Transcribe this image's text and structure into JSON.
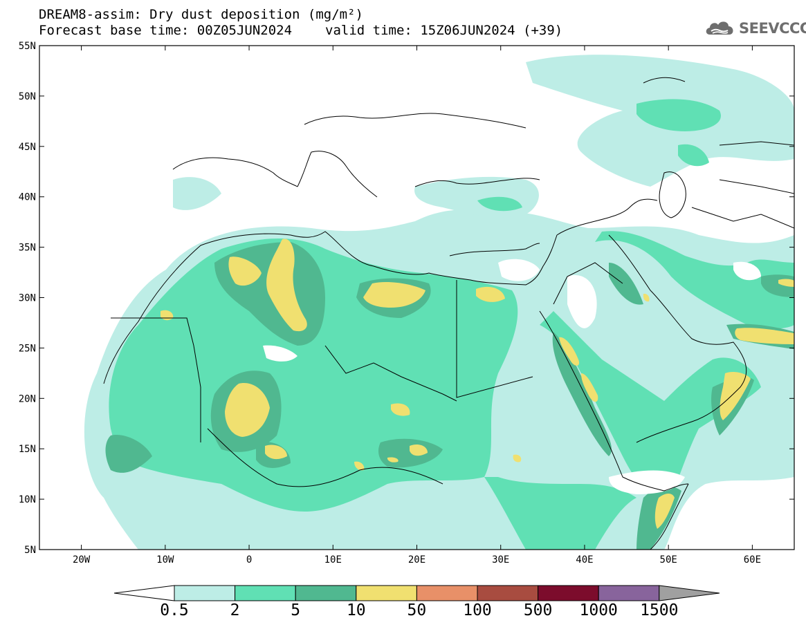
{
  "title_line1": "DREAM8-assim: Dry dust deposition (mg/m²)",
  "forecast_base_time": "Forecast base time: 00Z05JUN2024",
  "valid_time": "valid time: 15Z06JUN2024 (+39)",
  "logo": {
    "text": "SEEVCCC",
    "icon": "cloud-icon",
    "color": "#6e6e6e"
  },
  "map": {
    "lon_range": [
      -25,
      65
    ],
    "lat_range": [
      5,
      55
    ],
    "x_ticks": [
      "20W",
      "10W",
      "0",
      "10E",
      "20E",
      "30E",
      "40E",
      "50E",
      "60E"
    ],
    "x_tick_values": [
      -20,
      -10,
      0,
      10,
      20,
      30,
      40,
      50,
      60
    ],
    "y_ticks": [
      "5N",
      "10N",
      "15N",
      "20N",
      "25N",
      "30N",
      "35N",
      "40N",
      "45N",
      "50N",
      "55N"
    ],
    "y_tick_values": [
      5,
      10,
      15,
      20,
      25,
      30,
      35,
      40,
      45,
      50,
      55
    ]
  },
  "colorbar": {
    "labels": [
      "0.5",
      "2",
      "5",
      "10",
      "50",
      "100",
      "500",
      "1000",
      "1500"
    ],
    "colors": [
      "#bdede6",
      "#60e0b4",
      "#50b890",
      "#f0e070",
      "#e89068",
      "#a84c40",
      "#7c0c2c",
      "#88649c"
    ],
    "below_color": "#ffffff",
    "above_color": "#a0a0a0"
  }
}
